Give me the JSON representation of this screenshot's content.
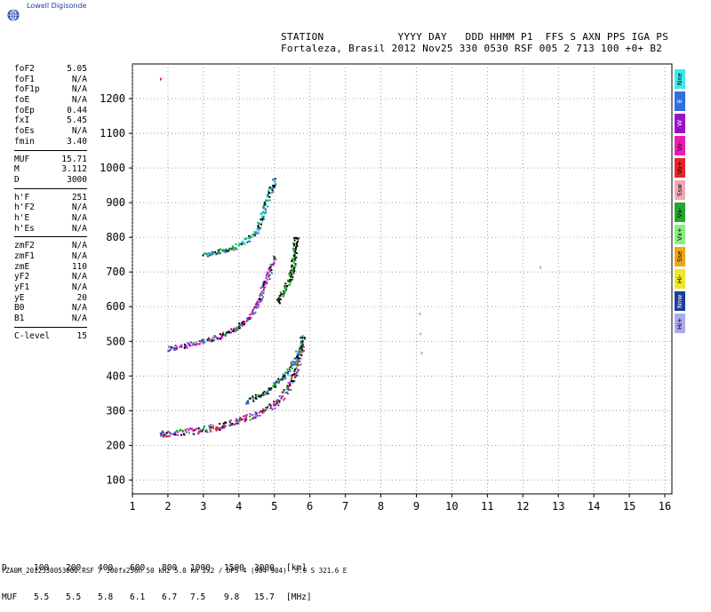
{
  "header": {
    "logo_text": "Lowell Digisonde",
    "line1": "STATION            YYYY DAY   DDD HHMM P1  FFS S AXN PPS IGA PS",
    "line2": "Fortaleza, Brasil 2012 Nov25 330 0530 RSF 005 2 713 100 +0+ B2"
  },
  "params_groups": [
    [
      {
        "name": "foF2",
        "value": "5.05"
      },
      {
        "name": "foF1",
        "value": "N/A"
      },
      {
        "name": "foF1p",
        "value": "N/A"
      },
      {
        "name": "foE",
        "value": "N/A"
      },
      {
        "name": "foEp",
        "value": "0.44"
      },
      {
        "name": "fxI",
        "value": "5.45"
      },
      {
        "name": "foEs",
        "value": "N/A"
      },
      {
        "name": "fmin",
        "value": "3.40"
      }
    ],
    [
      {
        "name": "MUF",
        "value": "15.71"
      },
      {
        "name": "M",
        "value": "3.112"
      },
      {
        "name": "D",
        "value": "3000"
      }
    ],
    [
      {
        "name": "h'F",
        "value": "251"
      },
      {
        "name": "h'F2",
        "value": "N/A"
      },
      {
        "name": "h'E",
        "value": "N/A"
      },
      {
        "name": "h'Es",
        "value": "N/A"
      }
    ],
    [
      {
        "name": "zmF2",
        "value": "N/A"
      },
      {
        "name": "zmF1",
        "value": "N/A"
      },
      {
        "name": "zmE",
        "value": "110"
      },
      {
        "name": "yF2",
        "value": "N/A"
      },
      {
        "name": "yF1",
        "value": "N/A"
      },
      {
        "name": "yE",
        "value": "20"
      },
      {
        "name": "B0",
        "value": "N/A"
      },
      {
        "name": "B1",
        "value": "N/A"
      }
    ],
    [
      {
        "name": "C-level",
        "value": "15"
      }
    ]
  ],
  "legend": [
    {
      "label": "Nne",
      "color": "#40e8ea"
    },
    {
      "label": "E",
      "color": "#2f6fe0"
    },
    {
      "label": "W",
      "color": "#9a12c8"
    },
    {
      "label": "Vo-",
      "color": "#ee1ab4"
    },
    {
      "label": "Vo+",
      "color": "#e8242a"
    },
    {
      "label": "Ssw",
      "color": "#f0a8b8"
    },
    {
      "label": "Vx-",
      "color": "#22a82a"
    },
    {
      "label": "Vx+",
      "color": "#88ee80"
    },
    {
      "label": "Sse",
      "color": "#f0a418"
    },
    {
      "label": "Hi-",
      "color": "#f0e628"
    },
    {
      "label": "Nnw",
      "color": "#1a3e9a"
    },
    {
      "label": "Hi+",
      "color": "#aaaaee"
    }
  ],
  "bottom_table": {
    "d_label": "D",
    "d_values": [
      "100",
      "200",
      "400",
      "600",
      "800",
      "1000",
      "1500",
      "3000"
    ],
    "d_unit": "[km]",
    "muf_label": "MUF",
    "muf_values": [
      "5.5",
      "5.5",
      "5.8",
      "6.1",
      "6.7",
      "7.5",
      "9.8",
      "15.7"
    ],
    "muf_unit": "[MHz]"
  },
  "footer": "FZA0M_2012330053000.RSF / 300fx256h 50 kHz 5.0 km 2x2 / DPS-4 (904-904)  3.9 S 321.6 E",
  "chart_data": {
    "type": "scatter",
    "title": "",
    "xlabel": "",
    "ylabel": "",
    "xlim": [
      1,
      16.2
    ],
    "ylim": [
      60,
      1300
    ],
    "xticks": [
      1,
      2,
      3,
      4,
      5,
      6,
      7,
      8,
      9,
      10,
      11,
      12,
      13,
      14,
      15,
      16
    ],
    "yticks": [
      100,
      200,
      300,
      400,
      500,
      600,
      700,
      800,
      900,
      1000,
      1100,
      1200
    ],
    "grid": "dotted",
    "traces": [
      {
        "name": "F layer O-trace",
        "x": [
          1.75,
          2.0,
          2.3,
          2.6,
          2.9,
          3.2,
          3.5,
          3.8,
          4.1,
          4.4,
          4.7,
          4.95,
          5.15,
          5.3,
          5.45,
          5.55,
          5.65,
          5.72
        ],
        "y": [
          238,
          240,
          243,
          246,
          250,
          255,
          262,
          270,
          280,
          292,
          305,
          320,
          340,
          360,
          385,
          410,
          440,
          470
        ],
        "colors": [
          "#22a82a",
          "#2f6fe0",
          "#e8242a",
          "#ee1ab4",
          "#9a12c8",
          "#000000"
        ]
      },
      {
        "name": "F layer second hop",
        "x": [
          2.0,
          2.4,
          2.8,
          3.1,
          3.4,
          3.7,
          4.0,
          4.3,
          4.5,
          4.75
        ],
        "y": [
          482,
          490,
          500,
          508,
          518,
          530,
          548,
          575,
          610,
          680
        ],
        "colors": [
          "#2f6fe0",
          "#ee1ab4",
          "#000000",
          "#22a82a",
          "#9a12c8"
        ]
      },
      {
        "name": "F layer third hop",
        "x": [
          3.0,
          3.3,
          3.6,
          3.9,
          4.2,
          4.5,
          4.75
        ],
        "y": [
          755,
          760,
          768,
          778,
          795,
          825,
          900
        ],
        "colors": [
          "#000000",
          "#40e8ea",
          "#2f6fe0",
          "#22a82a"
        ]
      },
      {
        "name": "X trace",
        "x": [
          4.2,
          4.5,
          4.8,
          5.0,
          5.2,
          5.35,
          5.5,
          5.6,
          5.7,
          5.75
        ],
        "y": [
          330,
          345,
          360,
          380,
          400,
          420,
          440,
          460,
          480,
          500
        ],
        "colors": [
          "#000000",
          "#22a82a",
          "#2f6fe0"
        ]
      },
      {
        "name": "upper X trace",
        "x": [
          5.1,
          5.2,
          5.3,
          5.4,
          5.5,
          5.55
        ],
        "y": [
          620,
          640,
          660,
          680,
          710,
          760
        ],
        "colors": [
          "#000000",
          "#22a82a"
        ]
      },
      {
        "name": "isolated points",
        "x": [
          1.8,
          9.1,
          9.12,
          9.15,
          12.5
        ],
        "y": [
          1255,
          578,
          520,
          465,
          712
        ],
        "colors": [
          "#ee1ab4",
          "#aaaaee",
          "#aaaaee",
          "#aaaaee",
          "#aaaaee"
        ]
      }
    ]
  }
}
